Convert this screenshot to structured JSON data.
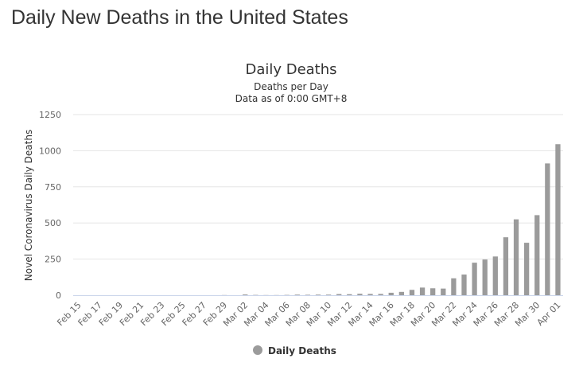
{
  "page": {
    "heading": "Daily New Deaths in the United States"
  },
  "colors": {
    "bar": "#9b9b9b",
    "grid": "#e6e6e6",
    "axis_line": "#ccd6eb",
    "text": "#333333",
    "tick_text": "#666666"
  },
  "chart_data": {
    "type": "bar",
    "title": "Daily Deaths",
    "subtitle": [
      "Deaths per Day",
      "Data as of 0:00 GMT+8"
    ],
    "xlabel": "",
    "ylabel": "Novel Coronavirus Daily Deaths",
    "ylim": [
      0,
      1250
    ],
    "yticks": [
      0,
      250,
      500,
      750,
      1000,
      1250
    ],
    "grid": true,
    "legend": "bottom-center",
    "categories": [
      "Feb 15",
      "Feb 16",
      "Feb 17",
      "Feb 18",
      "Feb 19",
      "Feb 20",
      "Feb 21",
      "Feb 22",
      "Feb 23",
      "Feb 24",
      "Feb 25",
      "Feb 26",
      "Feb 27",
      "Feb 28",
      "Feb 29",
      "Mar 01",
      "Mar 02",
      "Mar 03",
      "Mar 04",
      "Mar 05",
      "Mar 06",
      "Mar 07",
      "Mar 08",
      "Mar 09",
      "Mar 10",
      "Mar 11",
      "Mar 12",
      "Mar 13",
      "Mar 14",
      "Mar 15",
      "Mar 16",
      "Mar 17",
      "Mar 18",
      "Mar 19",
      "Mar 20",
      "Mar 21",
      "Mar 22",
      "Mar 23",
      "Mar 24",
      "Mar 25",
      "Mar 26",
      "Mar 27",
      "Mar 28",
      "Mar 29",
      "Mar 30",
      "Mar 31",
      "Apr 01"
    ],
    "xtick_labels": [
      "Feb 15",
      "Feb 17",
      "Feb 19",
      "Feb 21",
      "Feb 23",
      "Feb 25",
      "Feb 27",
      "Feb 29",
      "Mar 02",
      "Mar 04",
      "Mar 06",
      "Mar 08",
      "Mar 10",
      "Mar 12",
      "Mar 14",
      "Mar 16",
      "Mar 18",
      "Mar 20",
      "Mar 22",
      "Mar 24",
      "Mar 26",
      "Mar 28",
      "Mar 30",
      "Apr 01"
    ],
    "series": [
      {
        "name": "Daily Deaths",
        "values": [
          0,
          0,
          0,
          0,
          0,
          0,
          0,
          0,
          0,
          0,
          0,
          0,
          0,
          0,
          1,
          0,
          5,
          2,
          1,
          1,
          2,
          4,
          3,
          4,
          4,
          8,
          7,
          10,
          9,
          9,
          17,
          23,
          37,
          53,
          48,
          46,
          117,
          143,
          225,
          247,
          268,
          401,
          525,
          363,
          554,
          912,
          1045
        ]
      }
    ]
  }
}
